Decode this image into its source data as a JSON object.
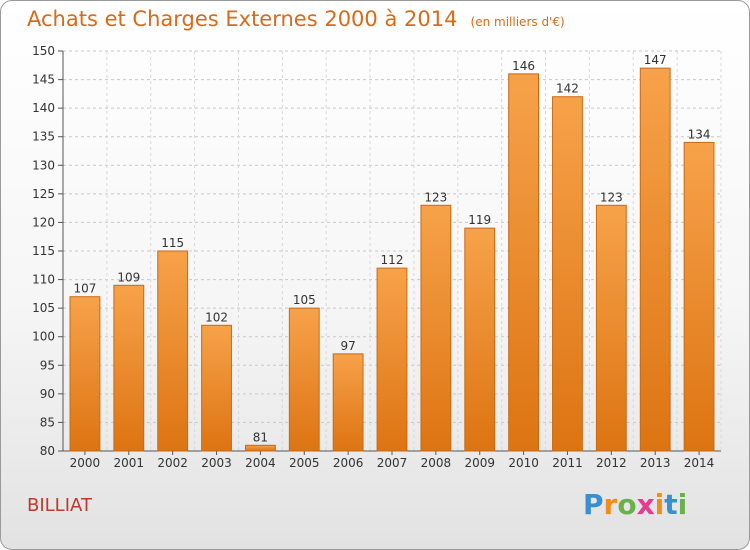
{
  "chart_data": {
    "type": "bar",
    "title": "Achats et Charges Externes 2000 à 2014",
    "subtitle": "(en milliers d'€)",
    "categories": [
      "2000",
      "2001",
      "2002",
      "2003",
      "2004",
      "2005",
      "2006",
      "2007",
      "2008",
      "2009",
      "2010",
      "2011",
      "2012",
      "2013",
      "2014"
    ],
    "values": [
      107,
      109,
      115,
      102,
      81,
      105,
      97,
      112,
      123,
      119,
      146,
      142,
      123,
      147,
      134
    ],
    "ylim": [
      80,
      150
    ],
    "yticks": [
      80,
      85,
      90,
      95,
      100,
      105,
      110,
      115,
      120,
      125,
      130,
      135,
      140,
      145,
      150
    ],
    "xlabel": "",
    "ylabel": "",
    "grid": true,
    "bar_color": "#f39a3c",
    "bar_edge_color": "#c96a12"
  },
  "commune": "BILLIAT",
  "logo": {
    "text": "Proxiti",
    "letter_colors": [
      "#3a8fd1",
      "#f28c1c",
      "#6ab04c",
      "#e63c8f",
      "#f28c1c",
      "#3a8fd1",
      "#6ab04c"
    ]
  }
}
